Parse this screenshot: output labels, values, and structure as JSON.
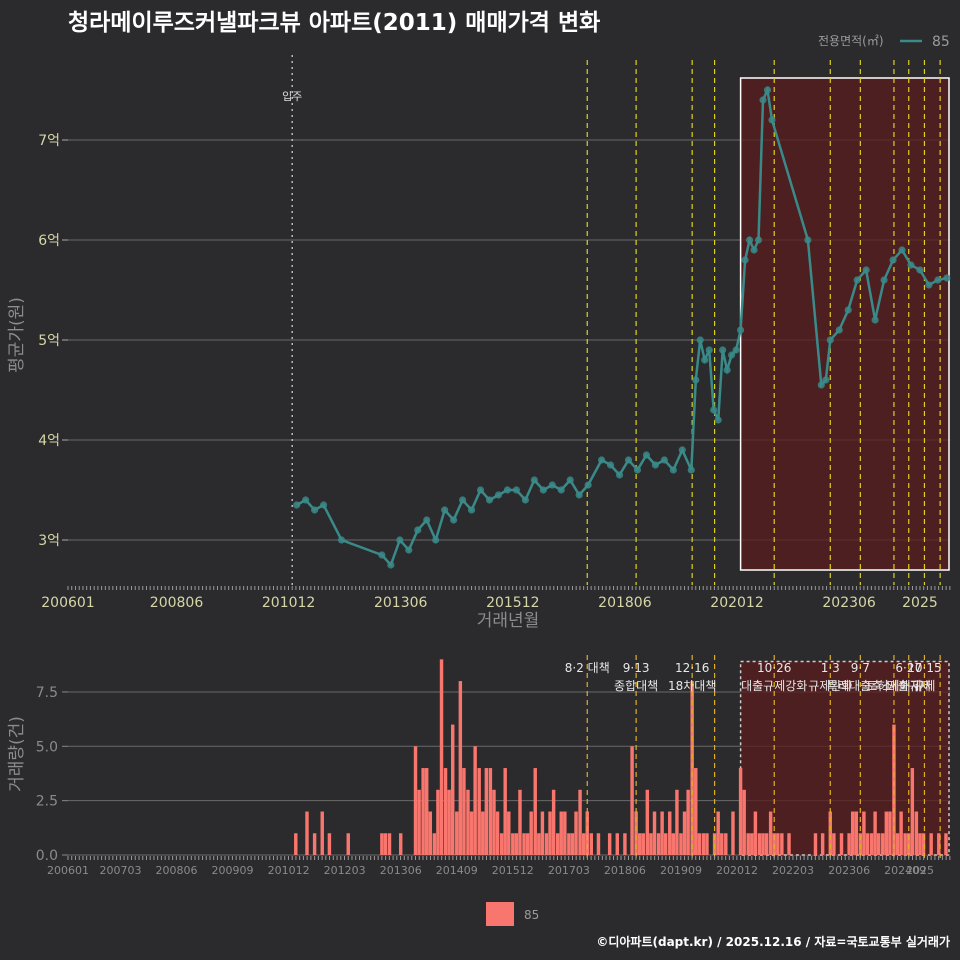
{
  "title": "청라메이루즈커낼파크뷰 아파트(2011) 매매가격 변화",
  "legend_top": {
    "title": "전용면적(㎡)",
    "label": "85",
    "color": "#3a8a8a"
  },
  "legend_bottom": {
    "label": "85",
    "color": "#f8766d"
  },
  "footer": "©디아파트(dapt.kr) / 2025.12.16 / 자료=국토교통부 실거래가",
  "chart_data": [
    {
      "type": "line",
      "xlabel": "거래년월",
      "ylabel": "평균가(원)",
      "xlim": [
        2006.0,
        2025.67
      ],
      "ylim": [
        2.55,
        7.85
      ],
      "x_ticks": [
        2006.0,
        2008.42,
        2010.92,
        2013.42,
        2015.92,
        2018.42,
        2020.92,
        2023.42,
        2025.0
      ],
      "x_tick_labels": [
        "200601",
        "200806",
        "201012",
        "201306",
        "201512",
        "201806",
        "202012",
        "202306",
        "2025"
      ],
      "y_ticks": [
        3,
        4,
        5,
        6,
        7
      ],
      "y_tick_labels": [
        "3억",
        "4억",
        "5억",
        "6억",
        "7억"
      ],
      "annotation": {
        "label": "입주",
        "x": 2011.0
      },
      "highlight_range": [
        2021.0,
        2025.95
      ],
      "policy_lines": [
        2017.58,
        2018.67,
        2019.92,
        2020.42,
        2021.75,
        2023.0,
        2023.67,
        2024.42,
        2024.75,
        2025.1,
        2025.45
      ],
      "series": [
        {
          "name": "85",
          "color": "#3a8a8a",
          "x": [
            2011.1,
            2011.3,
            2011.5,
            2011.7,
            2012.1,
            2013.0,
            2013.2,
            2013.4,
            2013.6,
            2013.8,
            2014.0,
            2014.2,
            2014.4,
            2014.6,
            2014.8,
            2015.0,
            2015.2,
            2015.4,
            2015.6,
            2015.8,
            2016.0,
            2016.2,
            2016.4,
            2016.6,
            2016.8,
            2017.0,
            2017.2,
            2017.4,
            2017.6,
            2017.9,
            2018.1,
            2018.3,
            2018.5,
            2018.7,
            2018.9,
            2019.1,
            2019.3,
            2019.5,
            2019.7,
            2019.9,
            2020.0,
            2020.1,
            2020.2,
            2020.3,
            2020.4,
            2020.5,
            2020.6,
            2020.7,
            2020.8,
            2020.9,
            2021.0,
            2021.1,
            2021.2,
            2021.3,
            2021.4,
            2021.5,
            2021.6,
            2021.7,
            2022.5,
            2022.8,
            2022.9,
            2023.0,
            2023.2,
            2023.4,
            2023.6,
            2023.8,
            2024.0,
            2024.2,
            2024.4,
            2024.6,
            2024.8,
            2025.0,
            2025.2,
            2025.4,
            2025.6
          ],
          "y": [
            3.35,
            3.4,
            3.3,
            3.35,
            3.0,
            2.85,
            2.75,
            3.0,
            2.9,
            3.1,
            3.2,
            3.0,
            3.3,
            3.2,
            3.4,
            3.3,
            3.5,
            3.4,
            3.45,
            3.5,
            3.5,
            3.4,
            3.6,
            3.5,
            3.55,
            3.5,
            3.6,
            3.45,
            3.55,
            3.8,
            3.75,
            3.65,
            3.8,
            3.7,
            3.85,
            3.75,
            3.8,
            3.7,
            3.9,
            3.7,
            4.6,
            5.0,
            4.8,
            4.9,
            4.3,
            4.2,
            4.9,
            4.7,
            4.85,
            4.9,
            5.1,
            5.8,
            6.0,
            5.9,
            6.0,
            7.4,
            7.5,
            7.2,
            6.0,
            4.55,
            4.6,
            5.0,
            5.1,
            5.3,
            5.6,
            5.7,
            5.2,
            5.6,
            5.8,
            5.9,
            5.75,
            5.7,
            5.55,
            5.6,
            5.62
          ]
        }
      ]
    },
    {
      "type": "bar",
      "xlabel": "",
      "ylabel": "거래량(건)",
      "xlim": [
        2006.0,
        2025.67
      ],
      "ylim": [
        0,
        9.2
      ],
      "x_ticks": [
        2006.0,
        2007.17,
        2008.42,
        2009.67,
        2010.92,
        2012.17,
        2013.42,
        2014.67,
        2015.92,
        2017.17,
        2018.42,
        2019.67,
        2020.92,
        2022.17,
        2023.42,
        2024.67,
        2025.0
      ],
      "x_tick_labels": [
        "200601",
        "200703",
        "200806",
        "200909",
        "201012",
        "201203",
        "201306",
        "201409",
        "201512",
        "201703",
        "201806",
        "201909",
        "202012",
        "202203",
        "202306",
        "202409",
        "2025"
      ],
      "y_ticks": [
        0,
        2.5,
        5,
        7.5
      ],
      "y_tick_labels": [
        "0.0",
        "2.5",
        "5.0",
        "7.5"
      ],
      "highlight_range": [
        2021.0,
        2025.95
      ],
      "policies": [
        {
          "x": 2017.58,
          "lines": [
            "8·2 대책"
          ]
        },
        {
          "x": 2018.67,
          "lines": [
            "9·13",
            "종합대책"
          ]
        },
        {
          "x": 2019.92,
          "lines": [
            "12·16",
            "18차대책"
          ]
        },
        {
          "x": 2020.42,
          "lines": [
            ""
          ]
        },
        {
          "x": 2021.75,
          "lines": [
            "10·26",
            "대출규제강화"
          ]
        },
        {
          "x": 2023.0,
          "lines": [
            "1·3",
            "규제완화"
          ]
        },
        {
          "x": 2023.67,
          "lines": [
            "9·7",
            "특례대출축소"
          ]
        },
        {
          "x": 2024.42,
          "lines": [
            "",
            "토허제해제"
          ]
        },
        {
          "x": 2024.75,
          "lines": [
            "6·27",
            "대출규제"
          ]
        },
        {
          "x": 2025.1,
          "lines": [
            "10·15",
            "규제"
          ]
        },
        {
          "x": 2025.45,
          "lines": [
            ""
          ]
        }
      ],
      "series": [
        {
          "name": "85",
          "color": "#f8766d",
          "x": [
            2011.08,
            2011.33,
            2011.5,
            2011.67,
            2011.83,
            2012.25,
            2013.0,
            2013.08,
            2013.17,
            2013.42,
            2013.75,
            2013.83,
            2013.92,
            2014.0,
            2014.08,
            2014.17,
            2014.25,
            2014.33,
            2014.42,
            2014.5,
            2014.58,
            2014.67,
            2014.75,
            2014.83,
            2014.92,
            2015.0,
            2015.08,
            2015.17,
            2015.25,
            2015.33,
            2015.42,
            2015.5,
            2015.58,
            2015.67,
            2015.75,
            2015.83,
            2015.92,
            2016.0,
            2016.08,
            2016.17,
            2016.25,
            2016.33,
            2016.42,
            2016.5,
            2016.58,
            2016.67,
            2016.75,
            2016.83,
            2016.92,
            2017.0,
            2017.08,
            2017.17,
            2017.25,
            2017.33,
            2017.42,
            2017.5,
            2017.58,
            2017.67,
            2017.83,
            2018.08,
            2018.25,
            2018.42,
            2018.58,
            2018.67,
            2018.75,
            2018.83,
            2018.92,
            2019.0,
            2019.08,
            2019.17,
            2019.25,
            2019.33,
            2019.42,
            2019.5,
            2019.58,
            2019.67,
            2019.75,
            2019.83,
            2019.92,
            2020.0,
            2020.08,
            2020.17,
            2020.25,
            2020.42,
            2020.5,
            2020.58,
            2020.67,
            2020.83,
            2021.0,
            2021.08,
            2021.17,
            2021.25,
            2021.33,
            2021.42,
            2021.5,
            2021.58,
            2021.67,
            2021.75,
            2021.83,
            2021.92,
            2022.08,
            2022.67,
            2022.83,
            2023.0,
            2023.08,
            2023.25,
            2023.42,
            2023.5,
            2023.58,
            2023.67,
            2023.75,
            2023.83,
            2023.92,
            2024.0,
            2024.08,
            2024.17,
            2024.25,
            2024.33,
            2024.42,
            2024.5,
            2024.58,
            2024.67,
            2024.75,
            2024.83,
            2024.92,
            2025.0,
            2025.08,
            2025.25,
            2025.42,
            2025.58
          ],
          "values": [
            1,
            2,
            1,
            2,
            1,
            1,
            1,
            1,
            1,
            1,
            5,
            3,
            4,
            4,
            2,
            1,
            3,
            9,
            4,
            3,
            6,
            2,
            8,
            4,
            3,
            2,
            5,
            4,
            2,
            4,
            4,
            3,
            2,
            1,
            4,
            2,
            1,
            1,
            3,
            1,
            1,
            2,
            4,
            1,
            2,
            1,
            2,
            3,
            1,
            2,
            2,
            1,
            1,
            2,
            3,
            1,
            2,
            1,
            1,
            1,
            1,
            1,
            5,
            2,
            1,
            1,
            3,
            1,
            2,
            1,
            2,
            1,
            2,
            1,
            3,
            1,
            2,
            3,
            8,
            4,
            1,
            1,
            1,
            1,
            2,
            1,
            1,
            2,
            4,
            3,
            1,
            1,
            2,
            1,
            1,
            1,
            2,
            1,
            1,
            1,
            1,
            1,
            1,
            2,
            1,
            1,
            1,
            2,
            2,
            1,
            2,
            1,
            1,
            2,
            1,
            1,
            2,
            2,
            6,
            1,
            2,
            1,
            1,
            4,
            2,
            1,
            1,
            1,
            1,
            1
          ]
        }
      ]
    }
  ]
}
